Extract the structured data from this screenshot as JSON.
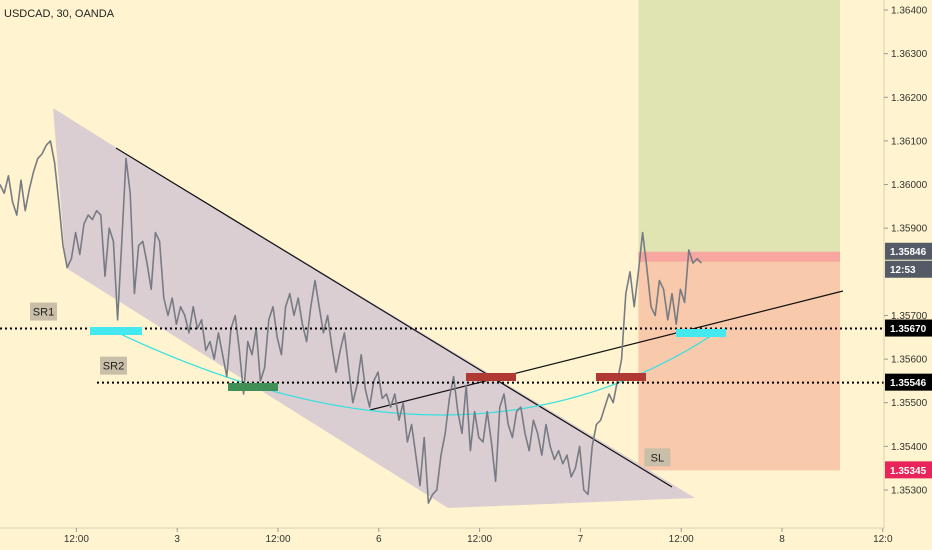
{
  "header": {
    "title": "USDCAD, 30, OANDA"
  },
  "chart_data": {
    "type": "line",
    "symbol": "USDCAD",
    "interval": "30",
    "source": "OANDA",
    "ylim": [
      1.3525,
      1.3643
    ],
    "y_ticks": [
      {
        "value": 1.353,
        "label": "1.35300"
      },
      {
        "value": 1.354,
        "label": "1.35400"
      },
      {
        "value": 1.355,
        "label": "1.35500"
      },
      {
        "value": 1.356,
        "label": "1.35600"
      },
      {
        "value": 1.357,
        "label": "1.35700"
      },
      {
        "value": 1.359,
        "label": "1.35900"
      },
      {
        "value": 1.36,
        "label": "1.36000"
      },
      {
        "value": 1.361,
        "label": "1.36100"
      },
      {
        "value": 1.362,
        "label": "1.36200"
      },
      {
        "value": 1.363,
        "label": "1.36300"
      },
      {
        "value": 1.364,
        "label": "1.36400"
      }
    ],
    "x_ticks": [
      {
        "index": 12,
        "label": "12:00"
      },
      {
        "index": 36,
        "label": "3"
      },
      {
        "index": 60,
        "label": "12:00"
      },
      {
        "index": 84,
        "label": "6"
      },
      {
        "index": 108,
        "label": "12:00"
      },
      {
        "index": 132,
        "label": "7"
      },
      {
        "index": 156,
        "label": "12:00"
      },
      {
        "index": 180,
        "label": "8"
      },
      {
        "index": 204,
        "label": "12:0"
      }
    ],
    "price_labels": [
      {
        "value": 1.35846,
        "label": "1.35846",
        "color": "#555b66",
        "kind": "last"
      },
      {
        "value": null,
        "label": "12:53",
        "color": "#555b66",
        "kind": "countdown"
      },
      {
        "value": 1.3567,
        "label": "1.35670",
        "color": "#000000",
        "kind": "level"
      },
      {
        "value": 1.35546,
        "label": "1.35546",
        "color": "#000000",
        "kind": "level"
      },
      {
        "value": 1.35345,
        "label": "1.35345",
        "color": "#e8245a",
        "kind": "stop"
      }
    ],
    "levels": [
      {
        "name": "SR1",
        "value": 1.3567
      },
      {
        "name": "SR2",
        "value": 1.35546
      }
    ],
    "position": {
      "entry": 1.35846,
      "target": 1.3643,
      "stop": 1.35345,
      "stop_label": "SL",
      "start_index": 152,
      "end_index": 200
    },
    "series": [
      {
        "values": [
          1.36,
          1.3598,
          1.3602,
          1.3596,
          1.3593,
          1.3601,
          1.3594,
          1.3599,
          1.3603,
          1.3606,
          1.3607,
          1.3609,
          1.361,
          1.3605,
          1.3596,
          1.3586,
          1.3581,
          1.3583,
          1.3589,
          1.3584,
          1.3591,
          1.3593,
          1.3592,
          1.3594,
          1.3593,
          1.3579,
          1.359,
          1.3587,
          1.3569,
          1.3587,
          1.3606,
          1.3598,
          1.3575,
          1.3586,
          1.3587,
          1.3582,
          1.3576,
          1.3589,
          1.3587,
          1.3574,
          1.357,
          1.3574,
          1.3568,
          1.3572,
          1.357,
          1.3566,
          1.3572,
          1.3567,
          1.3569,
          1.3562,
          1.3564,
          1.356,
          1.3566,
          1.3561,
          1.3556,
          1.3567,
          1.357,
          1.3562,
          1.3552,
          1.3564,
          1.3561,
          1.3567,
          1.3555,
          1.3558,
          1.3569,
          1.3572,
          1.3565,
          1.3561,
          1.3572,
          1.3575,
          1.357,
          1.3574,
          1.3568,
          1.3564,
          1.3572,
          1.3578,
          1.3572,
          1.3566,
          1.357,
          1.3563,
          1.3557,
          1.3562,
          1.3566,
          1.3558,
          1.355,
          1.3554,
          1.3561,
          1.3553,
          1.3549,
          1.3555,
          1.3557,
          1.3551,
          1.3552,
          1.3549,
          1.3552,
          1.3546,
          1.355,
          1.3541,
          1.3545,
          1.3538,
          1.3531,
          1.3542,
          1.3527,
          1.3529,
          1.353,
          1.3538,
          1.3543,
          1.3551,
          1.3556,
          1.3548,
          1.3543,
          1.3554,
          1.3539,
          1.3548,
          1.3542,
          1.3541,
          1.3548,
          1.3541,
          1.3532,
          1.3549,
          1.3552,
          1.3545,
          1.3542,
          1.3548,
          1.3549,
          1.3543,
          1.3539,
          1.3546,
          1.3543,
          1.3538,
          1.3545,
          1.354,
          1.3537,
          1.3539,
          1.3536,
          1.3538,
          1.3533,
          1.3535,
          1.354,
          1.353,
          1.3529,
          1.354,
          1.3545,
          1.3546,
          1.3549,
          1.3552,
          1.355,
          1.3555,
          1.356,
          1.3575,
          1.358,
          1.3572,
          1.358,
          1.3589,
          1.3581,
          1.3572,
          1.357,
          1.3578,
          1.3576,
          1.3569,
          1.3575,
          1.3568,
          1.3576,
          1.3573,
          1.3585,
          1.3582,
          1.3583,
          1.3582
        ]
      }
    ]
  }
}
